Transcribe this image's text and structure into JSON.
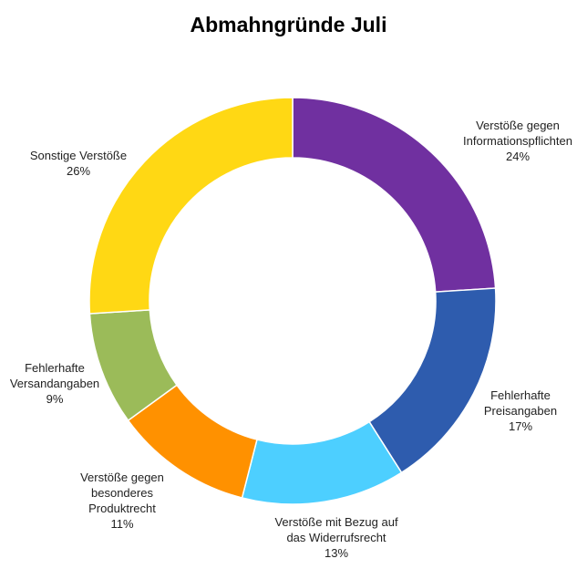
{
  "chart_data": {
    "type": "pie",
    "variant": "donut",
    "title": "Abmahngründe Juli",
    "legend": "none",
    "slices": [
      {
        "label_lines": [
          "Verstöße gegen",
          "Informationspflichten"
        ],
        "pct_label": "24%",
        "value": 24,
        "color": "#7030A0"
      },
      {
        "label_lines": [
          "Fehlerhafte",
          "Preisangaben"
        ],
        "pct_label": "17%",
        "value": 17,
        "color": "#2E5CAE"
      },
      {
        "label_lines": [
          "Verstöße mit Bezug auf",
          "das Widerrufsrecht"
        ],
        "pct_label": "13%",
        "value": 13,
        "color": "#4DCFFF"
      },
      {
        "label_lines": [
          "Verstöße gegen",
          "besonderes",
          "Produktrecht"
        ],
        "pct_label": "11%",
        "value": 11,
        "color": "#FF9100"
      },
      {
        "label_lines": [
          "Fehlerhafte",
          "Versandangaben"
        ],
        "pct_label": "9%",
        "value": 9,
        "color": "#9BBB59"
      },
      {
        "label_lines": [
          "Sonstige Verstöße"
        ],
        "pct_label": "26%",
        "value": 26,
        "color": "#FFD814"
      }
    ]
  }
}
